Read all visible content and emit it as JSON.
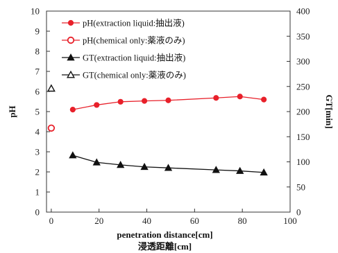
{
  "chart_data": {
    "type": "line",
    "x_axis": {
      "label_line1": "penetration distance[cm]",
      "label_line2": "浸透距離[cm]",
      "range": [
        -2,
        100
      ],
      "ticks": [
        0,
        20,
        40,
        60,
        80,
        100
      ]
    },
    "y_axis_left": {
      "label": "pH",
      "range": [
        0,
        10
      ],
      "ticks": [
        0,
        1,
        2,
        3,
        4,
        5,
        6,
        7,
        8,
        9,
        10
      ]
    },
    "y_axis_right": {
      "label": "GT[min]",
      "range": [
        0,
        400
      ],
      "ticks": [
        0,
        50,
        100,
        150,
        200,
        250,
        300,
        350,
        400
      ]
    },
    "grid": false,
    "legend_position": "top-center",
    "series": [
      {
        "name": "pH(extraction liquid:抽出液)",
        "axis": "left",
        "color": "#e8202a",
        "marker": "circle-filled",
        "line": true,
        "x": [
          9,
          19,
          29,
          39,
          49,
          69,
          79,
          89
        ],
        "y": [
          5.1,
          5.33,
          5.49,
          5.53,
          5.56,
          5.68,
          5.75,
          5.6
        ]
      },
      {
        "name": "pH(chemical only:薬液のみ)",
        "axis": "left",
        "color": "#e8202a",
        "marker": "circle-open",
        "line": false,
        "x": [
          0
        ],
        "y": [
          4.18
        ]
      },
      {
        "name": "GT(extraction liquid:抽出液)",
        "axis": "right",
        "color": "#111111",
        "marker": "triangle-filled",
        "line": true,
        "x": [
          9,
          19,
          29,
          39,
          49,
          69,
          79,
          89
        ],
        "y": [
          113,
          99,
          94,
          90,
          88,
          84,
          82,
          79
        ]
      },
      {
        "name": "GT(chemical only:薬液のみ)",
        "axis": "right",
        "color": "#111111",
        "marker": "triangle-open",
        "line": false,
        "x": [
          0
        ],
        "y": [
          246
        ]
      }
    ]
  }
}
